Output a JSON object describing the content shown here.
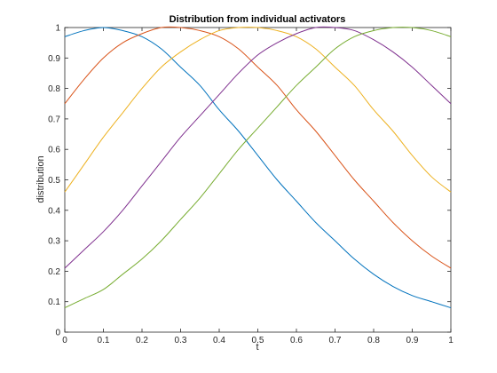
{
  "chart_data": {
    "type": "line",
    "title": "Distribution from individual activators",
    "xlabel": "t",
    "ylabel": "distribution",
    "xlim": [
      0,
      1
    ],
    "ylim": [
      0,
      1
    ],
    "grid": false,
    "legend": "none",
    "xticks": [
      "0",
      "0.1",
      "0.2",
      "0.3",
      "0.4",
      "0.5",
      "0.6",
      "0.7",
      "0.8",
      "0.9",
      "1"
    ],
    "yticks": [
      "0",
      "0.1",
      "0.2",
      "0.3",
      "0.4",
      "0.5",
      "0.6",
      "0.7",
      "0.8",
      "0.9",
      "1"
    ],
    "x": [
      0,
      0.05,
      0.1,
      0.15,
      0.2,
      0.25,
      0.3,
      0.35,
      0.4,
      0.45,
      0.5,
      0.55,
      0.6,
      0.65,
      0.7,
      0.75,
      0.8,
      0.85,
      0.9,
      0.95,
      1.0
    ],
    "series": [
      {
        "color": "#0072BD",
        "values": [
          0.97,
          0.99,
          1.0,
          0.99,
          0.97,
          0.93,
          0.87,
          0.81,
          0.73,
          0.66,
          0.58,
          0.5,
          0.43,
          0.36,
          0.3,
          0.24,
          0.19,
          0.15,
          0.12,
          0.1,
          0.08
        ]
      },
      {
        "color": "#D95319",
        "values": [
          0.75,
          0.83,
          0.9,
          0.95,
          0.98,
          1.0,
          1.0,
          0.99,
          0.97,
          0.93,
          0.87,
          0.81,
          0.73,
          0.66,
          0.58,
          0.5,
          0.43,
          0.36,
          0.3,
          0.25,
          0.21
        ]
      },
      {
        "color": "#EDB120",
        "values": [
          0.46,
          0.55,
          0.64,
          0.72,
          0.8,
          0.87,
          0.92,
          0.96,
          0.99,
          1.0,
          1.0,
          0.99,
          0.97,
          0.93,
          0.87,
          0.81,
          0.73,
          0.66,
          0.58,
          0.51,
          0.46
        ]
      },
      {
        "color": "#7E2F8E",
        "values": [
          0.21,
          0.27,
          0.33,
          0.4,
          0.48,
          0.56,
          0.64,
          0.71,
          0.78,
          0.85,
          0.91,
          0.95,
          0.98,
          1.0,
          1.0,
          0.99,
          0.96,
          0.92,
          0.87,
          0.81,
          0.75
        ]
      },
      {
        "color": "#77AC30",
        "values": [
          0.08,
          0.11,
          0.14,
          0.19,
          0.24,
          0.3,
          0.37,
          0.44,
          0.52,
          0.6,
          0.67,
          0.74,
          0.81,
          0.87,
          0.93,
          0.97,
          0.99,
          1.0,
          1.0,
          0.99,
          0.97
        ]
      }
    ]
  }
}
